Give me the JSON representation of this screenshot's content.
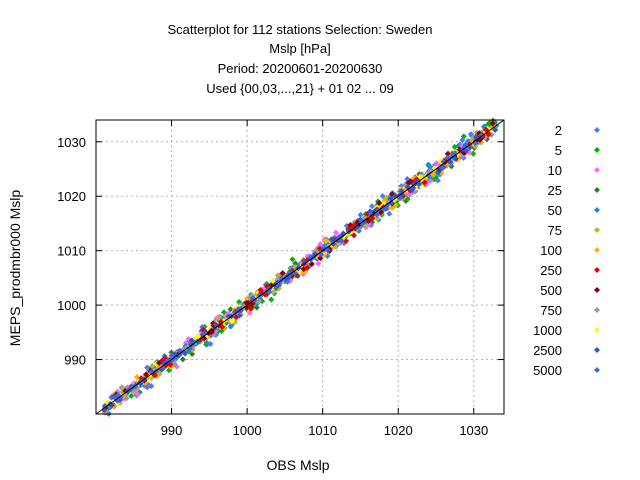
{
  "chart_data": {
    "type": "scatter",
    "title_lines": [
      "Scatterplot for  112 stations Selection: Sweden",
      "Mslp [hPa]",
      "Period: 20200601-20200630",
      "Used {00,03,...,21} + 01 02 ... 09"
    ],
    "xlabel": "OBS Mslp",
    "ylabel": "MEPS_prodmbr000 Mslp",
    "xlim": [
      980,
      1034
    ],
    "ylim": [
      980,
      1034
    ],
    "xticks": [
      990,
      1000,
      1010,
      1020,
      1030
    ],
    "yticks": [
      990,
      1000,
      1010,
      1020,
      1030
    ],
    "grid": true,
    "diagonal_line": true,
    "legend_position": "right",
    "legend": [
      {
        "label": "2",
        "color": "#4d79ff"
      },
      {
        "label": "5",
        "color": "#00b300"
      },
      {
        "label": "10",
        "color": "#ff66ff"
      },
      {
        "label": "25",
        "color": "#2e7d1f"
      },
      {
        "label": "50",
        "color": "#1e88e5"
      },
      {
        "label": "75",
        "color": "#b5b82a"
      },
      {
        "label": "100",
        "color": "#ffb000"
      },
      {
        "label": "250",
        "color": "#e60000"
      },
      {
        "label": "500",
        "color": "#8b0000"
      },
      {
        "label": "750",
        "color": "#999999"
      },
      {
        "label": "1000",
        "color": "#ffff00"
      },
      {
        "label": "2500",
        "color": "#3355dd"
      },
      {
        "label": "5000",
        "color": "#4466dd"
      }
    ],
    "point_band": {
      "x_min": 981,
      "x_max": 1033,
      "approx_spread_hpa": 2.5
    }
  }
}
